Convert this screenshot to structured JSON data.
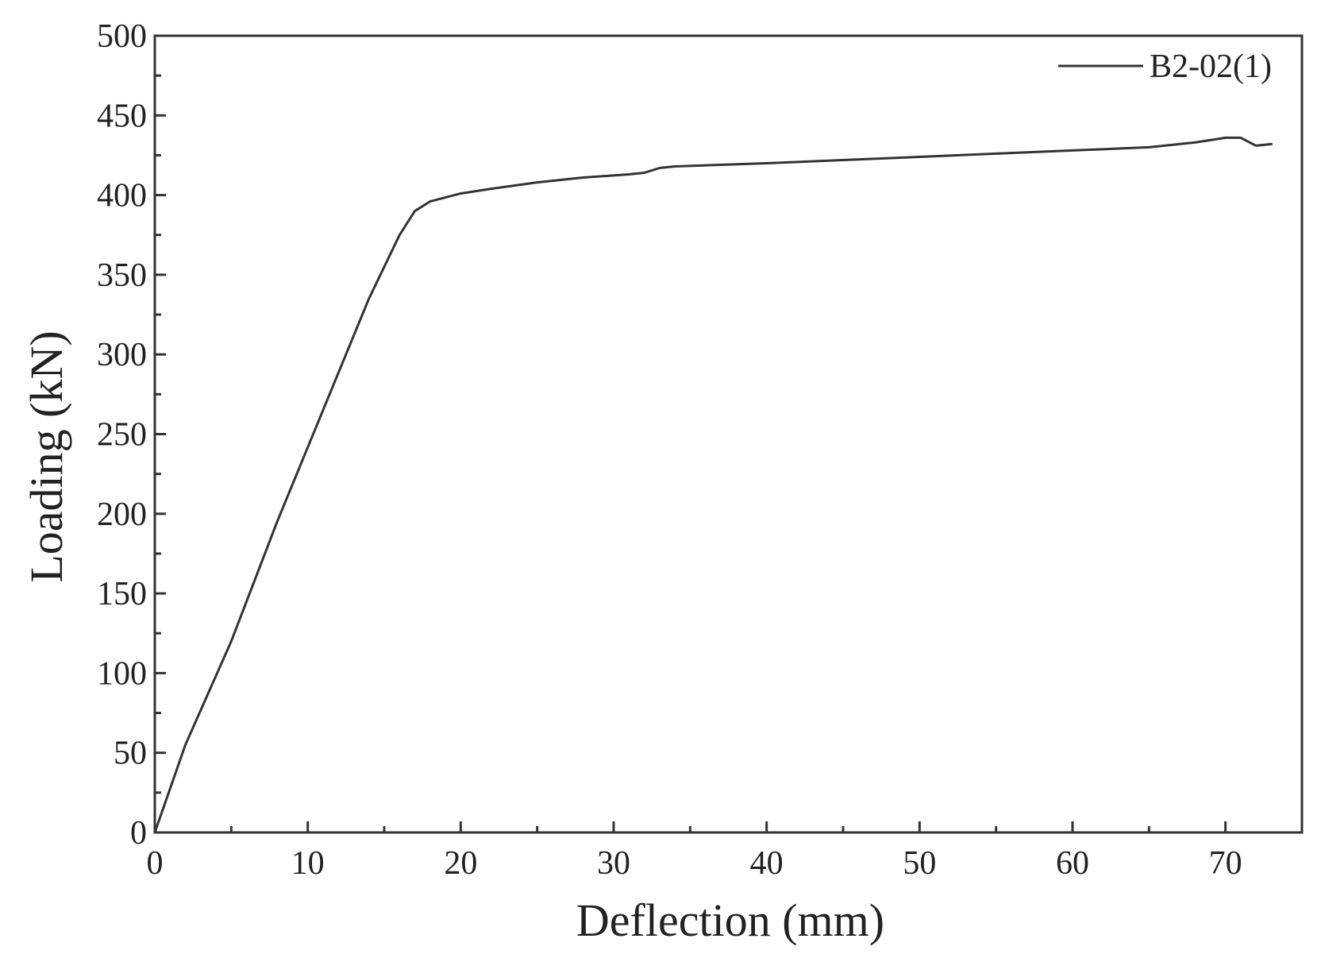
{
  "chart_data": {
    "type": "line",
    "title": "",
    "xlabel": "Deflection (mm)",
    "ylabel": "Loading (kN)",
    "xlim": [
      0,
      75
    ],
    "ylim": [
      0,
      500
    ],
    "xticks": [
      0,
      10,
      20,
      30,
      40,
      50,
      60,
      70
    ],
    "xtick_labels": [
      "0",
      "10",
      "20",
      "30",
      "40",
      "50",
      "60",
      "70"
    ],
    "yticks": [
      0,
      50,
      100,
      150,
      200,
      250,
      300,
      350,
      400,
      450,
      500
    ],
    "ytick_labels": [
      "0",
      "50",
      "100",
      "150",
      "200",
      "250",
      "300",
      "350",
      "400",
      "450",
      "500"
    ],
    "grid": false,
    "legend_position": "top-right",
    "series": [
      {
        "name": "B2-02(1)",
        "color": "#333333",
        "x": [
          0,
          2,
          5,
          8,
          11,
          14,
          16,
          17,
          18,
          20,
          22,
          25,
          28,
          31,
          32,
          33,
          34,
          40,
          45,
          50,
          55,
          60,
          65,
          68,
          70,
          71,
          72,
          73
        ],
        "y": [
          0,
          55,
          120,
          195,
          265,
          335,
          375,
          390,
          396,
          401,
          404,
          408,
          411,
          413,
          414,
          417,
          418,
          420,
          422,
          424,
          426,
          428,
          430,
          433,
          436,
          436,
          431,
          432
        ]
      }
    ]
  }
}
